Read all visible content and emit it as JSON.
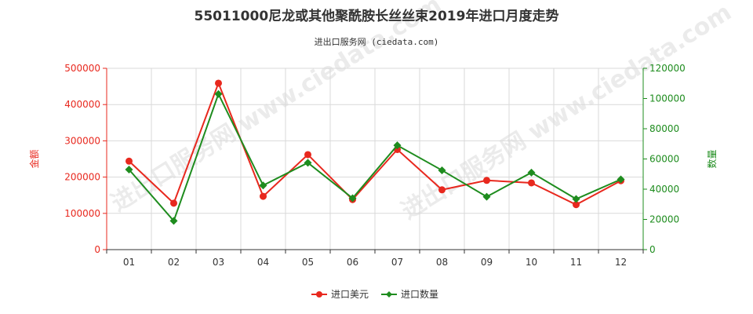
{
  "page": {
    "title": "55011000尼龙或其他聚酰胺长丝丝束2019年进口月度走势",
    "subtitle": "进出口服务网 (ciedata.com)",
    "watermark": "进出口服务网 www.ciedata.com"
  },
  "chart_data": {
    "type": "line",
    "title": "55011000尼龙或其他聚酰胺长丝丝束2019年进口月度走势",
    "subtitle": "进出口服务网 (ciedata.com)",
    "categories": [
      "01",
      "02",
      "03",
      "04",
      "05",
      "06",
      "07",
      "08",
      "09",
      "10",
      "11",
      "12"
    ],
    "y_left": {
      "label": "金额",
      "lim": [
        0,
        500000
      ],
      "ticks": [
        0,
        100000,
        200000,
        300000,
        400000,
        500000
      ],
      "color": "#e8281e"
    },
    "y_right": {
      "label": "数量",
      "lim": [
        0,
        120000
      ],
      "ticks": [
        0,
        20000,
        40000,
        60000,
        80000,
        100000,
        120000
      ],
      "color": "#1e8c1e"
    },
    "series": [
      {
        "name": "进口美元",
        "axis": "left",
        "color": "#e8281e",
        "values": [
          244000,
          128000,
          459000,
          147000,
          262000,
          138000,
          276000,
          165000,
          191000,
          184000,
          124000,
          190000
        ]
      },
      {
        "name": "进口数量",
        "axis": "right",
        "color": "#1e8c1e",
        "values": [
          53000,
          19000,
          103000,
          42500,
          57500,
          34000,
          69000,
          52500,
          35000,
          51000,
          33500,
          46500
        ]
      }
    ],
    "grid": true,
    "legend_position": "bottom-center"
  }
}
